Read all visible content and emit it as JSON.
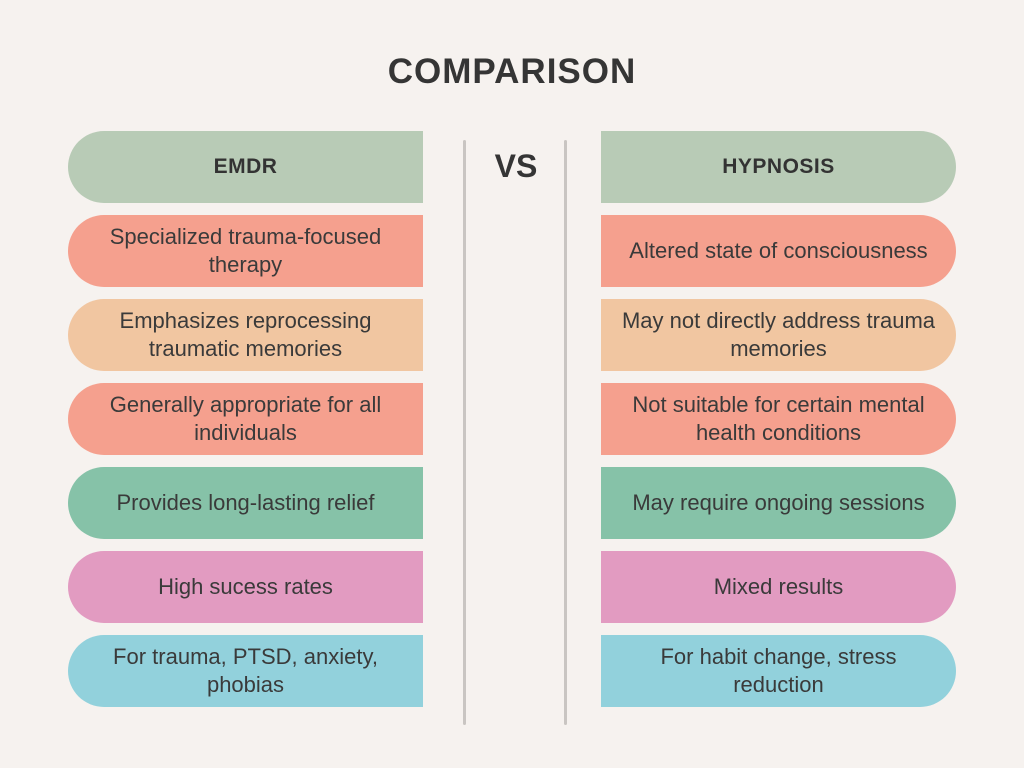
{
  "title": "COMPARISON",
  "vs_label": "VS",
  "left": {
    "header": "EMDR",
    "items": [
      "Specialized trauma-focused therapy",
      "Emphasizes reprocessing traumatic memories",
      "Generally appropriate for all individuals",
      "Provides long-lasting relief",
      "High sucess rates",
      "For trauma, PTSD, anxiety, phobias"
    ]
  },
  "right": {
    "header": "HYPNOSIS",
    "items": [
      "Altered state of consciousness",
      "May not directly address trauma memories",
      "Not suitable for certain mental health conditions",
      "May require ongoing sessions",
      "Mixed results",
      "For habit change, stress reduction"
    ]
  },
  "colors": {
    "background": "#f6f2ef",
    "header": "#b8cbb6",
    "rows": [
      "#f5a08e",
      "#f1c6a1",
      "#f5a08e",
      "#86c2a8",
      "#e29bc1",
      "#92d1dc"
    ]
  }
}
